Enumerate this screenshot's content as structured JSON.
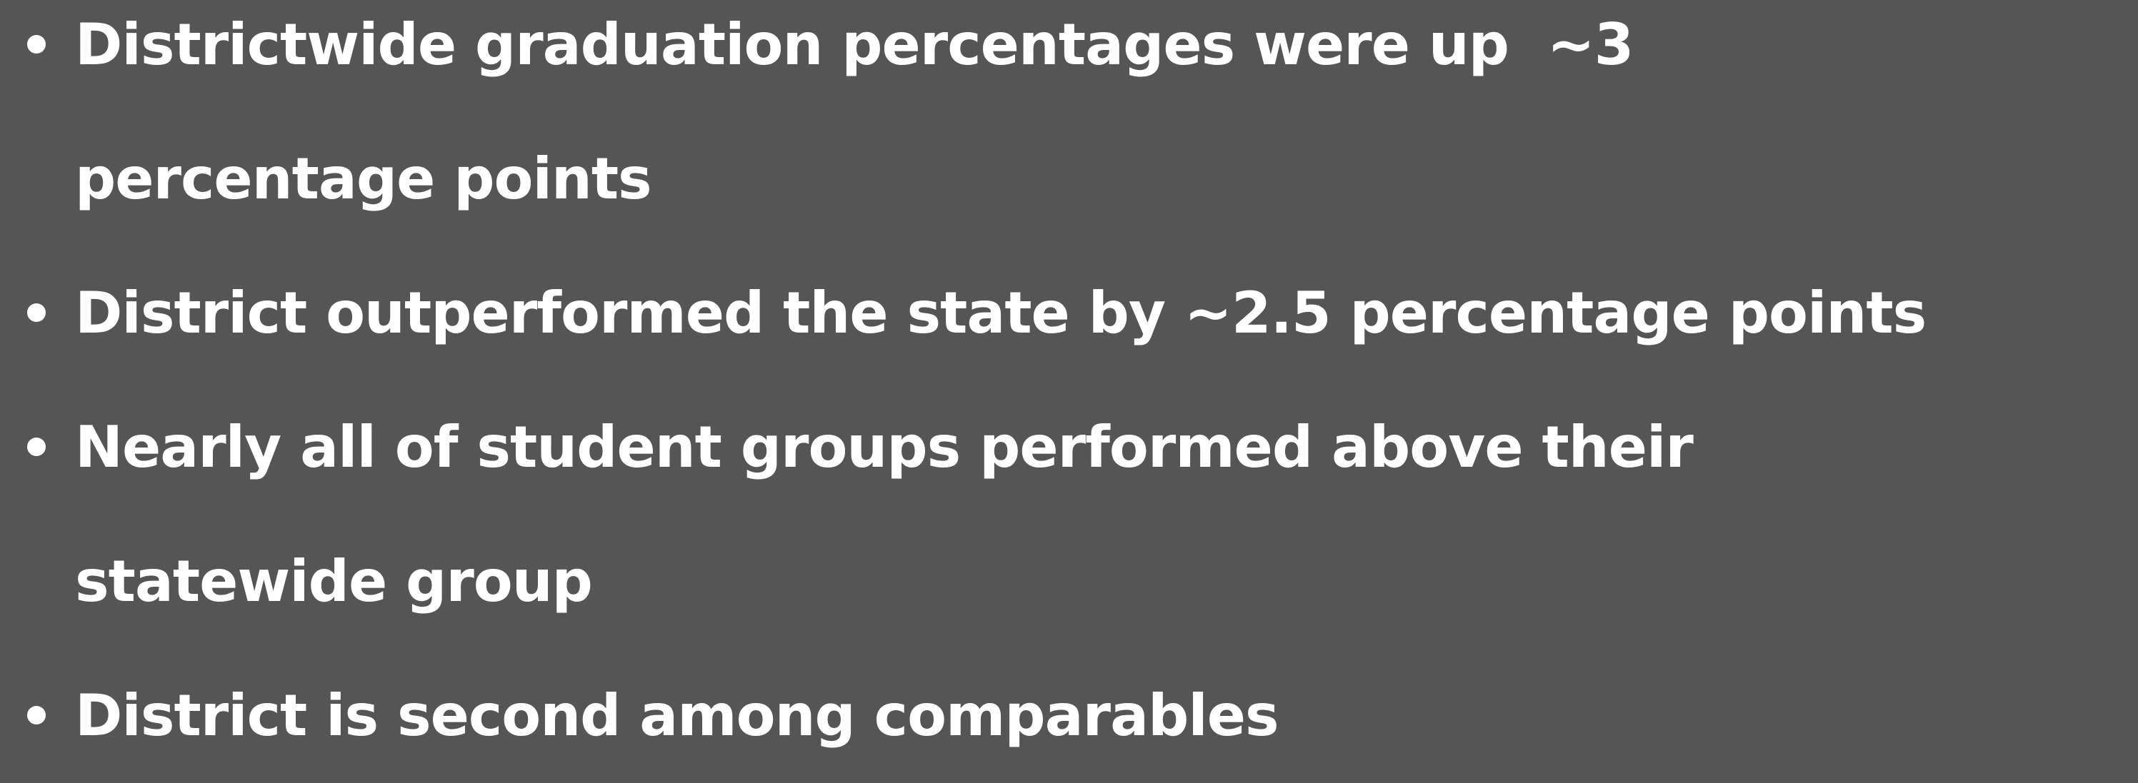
{
  "bullets": [
    {
      "lines": [
        "Districtwide graduation percentages were up  ~3",
        "percentage points"
      ]
    },
    {
      "lines": [
        "District outperformed the state by ~2.5 percentage points"
      ]
    },
    {
      "lines": [
        "Nearly all of student groups performed above their",
        "statewide group"
      ]
    },
    {
      "lines": [
        "District is second among comparables"
      ]
    }
  ]
}
